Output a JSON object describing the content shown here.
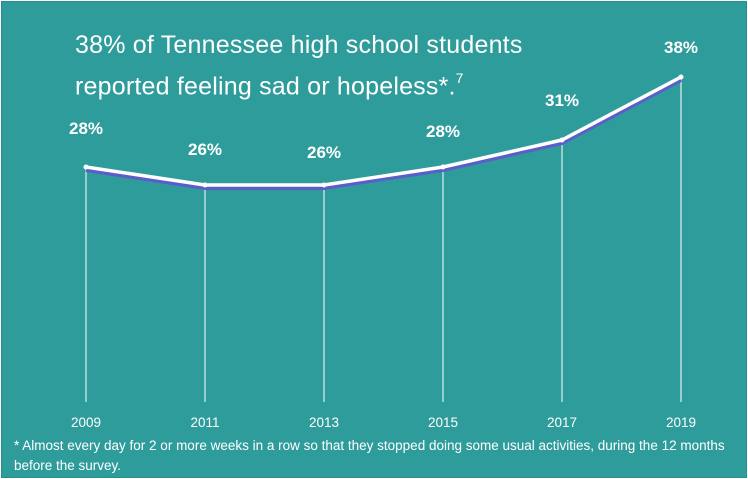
{
  "chart_data": {
    "type": "line",
    "title": "38% of Tennessee high school students reported feeling sad or hopeless*.",
    "title_superscript": "7",
    "x": [
      "2009",
      "2011",
      "2013",
      "2015",
      "2017",
      "2019"
    ],
    "series": [
      {
        "values": [
          28,
          26,
          26,
          28,
          31,
          38
        ]
      }
    ],
    "data_labels": [
      "28%",
      "26%",
      "26%",
      "28%",
      "31%",
      "38%"
    ],
    "xlabel": "",
    "ylabel": "",
    "ylim": [
      0,
      40
    ],
    "grid": "vertical drop lines at each year",
    "footnote": "* Almost every day for 2 or more weeks in a row so that they stopped doing some usual activities, during the 12 months before the survey.",
    "colors": {
      "background": "#2f9c9c",
      "line": "#ffffff",
      "line_shadow": "#5a5fc8",
      "drop_lines": "#ffffff",
      "text": "#ffffff"
    }
  }
}
